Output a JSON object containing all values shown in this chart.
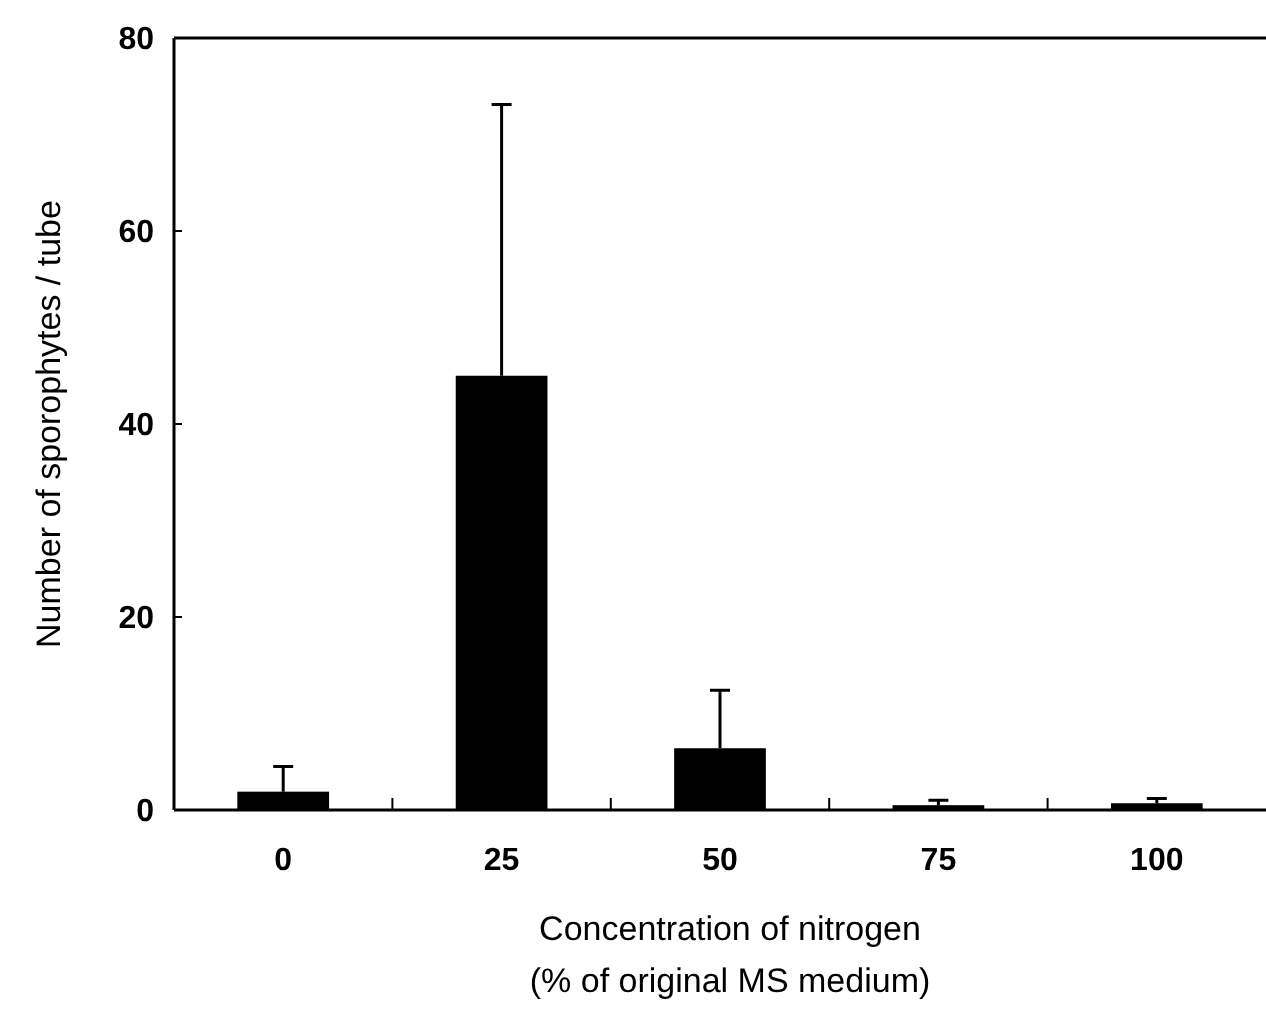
{
  "chart_data": {
    "type": "bar",
    "xlabel": "Concentration of nitrogen\n(% of original MS medium)",
    "ylabel": "Number of sporophytes / tube",
    "categories": [
      "0",
      "25",
      "50",
      "75",
      "100"
    ],
    "values": [
      1.9,
      45.0,
      6.4,
      0.5,
      0.7
    ],
    "errors": [
      2.6,
      28.1,
      6.0,
      0.5,
      0.5
    ],
    "color": "#000000",
    "ylim": [
      0,
      80
    ],
    "yticks": [
      0,
      20,
      40,
      60,
      80
    ],
    "grid": false
  }
}
